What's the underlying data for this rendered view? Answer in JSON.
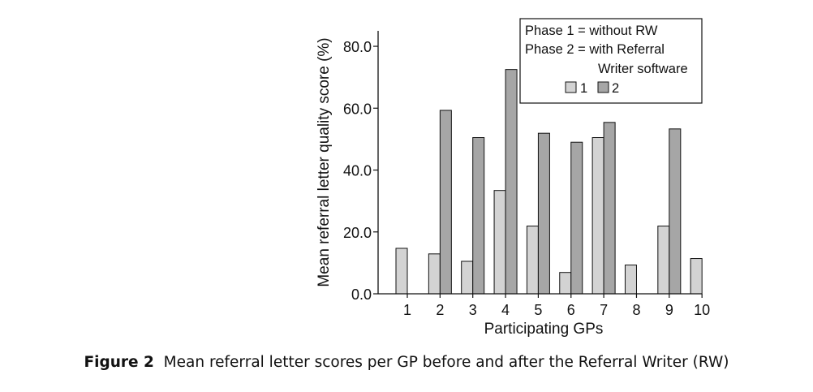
{
  "chart_data": {
    "type": "bar",
    "xlabel": "Participating GPs",
    "ylabel": "Mean referral letter quality score (%)",
    "categories": [
      "1",
      "2",
      "3",
      "4",
      "5",
      "6",
      "7",
      "8",
      "9",
      "10"
    ],
    "ylim": [
      0,
      85
    ],
    "yticks": [
      "0.0",
      "20.0",
      "40.0",
      "60.0",
      "80.0"
    ],
    "series": [
      {
        "name": "1",
        "color": "#d3d3d3",
        "values": [
          14.7,
          12.9,
          10.5,
          33.4,
          21.9,
          6.9,
          50.5,
          9.3,
          21.9,
          11.4
        ]
      },
      {
        "name": "2",
        "color": "#a6a6a6",
        "values": [
          null,
          59.3,
          50.5,
          72.5,
          51.9,
          49.0,
          55.4,
          null,
          53.3,
          null
        ]
      }
    ],
    "legend": {
      "lines": [
        "Phase 1 = without RW",
        "Phase 2 = with Referral",
        "Writer software"
      ],
      "position": "top-right"
    },
    "grid": false
  },
  "caption": {
    "label": "Figure 2",
    "text": "Mean referral letter scores per GP before and after the Referral Writer (RW)"
  }
}
